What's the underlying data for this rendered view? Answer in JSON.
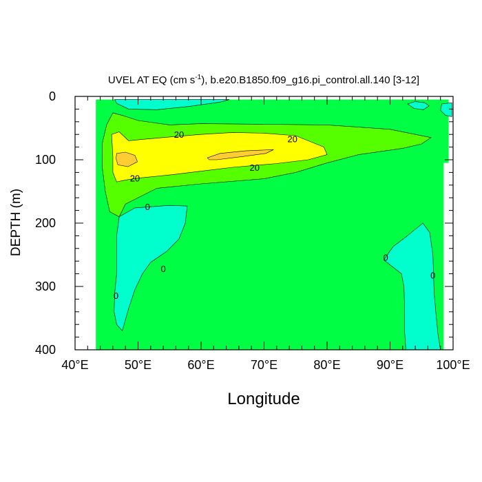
{
  "chart_data": {
    "type": "contour",
    "title": {
      "main": "UVEL AT EQ (cm s",
      "exp": "-1",
      "rest": "), b.e20.B1850.f09_g16.pi_control.all.140 [3-12]"
    },
    "xlabel": "Longitude",
    "ylabel": "DEPTH (m)",
    "xlim": [
      40,
      100
    ],
    "ylim": [
      0,
      400
    ],
    "y_inverted": true,
    "x_ticks": [
      40,
      50,
      60,
      70,
      80,
      90,
      100
    ],
    "x_tick_labels": [
      "40°E",
      "50°E",
      "60°E",
      "70°E",
      "80°E",
      "90°E",
      "100°E"
    ],
    "y_ticks": [
      0,
      100,
      200,
      300,
      400
    ],
    "y_tick_labels": [
      "0",
      "100",
      "200",
      "300",
      "400"
    ],
    "data_extent": {
      "x": [
        43.3,
        99.3
      ],
      "y": [
        5,
        400
      ]
    },
    "colors": {
      "negative": "#00ffcc",
      "background": "#00ff44",
      "band_10_20": "#55ff00",
      "band_20_30": "#ffff00",
      "band_30_40": "#ffcc33"
    },
    "regions": [
      {
        "fill": "negative",
        "level": "<0",
        "points": [
          [
            46.3,
            5
          ],
          [
            57,
            5
          ],
          [
            64.5,
            5
          ],
          [
            63,
            9
          ],
          [
            58,
            16
          ],
          [
            53,
            21
          ],
          [
            48.5,
            20
          ],
          [
            46.6,
            11
          ]
        ]
      },
      {
        "fill": "negative",
        "level": "<0",
        "points": [
          [
            92.8,
            12
          ],
          [
            94,
            8
          ],
          [
            95.5,
            10
          ],
          [
            96.2,
            15
          ],
          [
            95.3,
            21
          ],
          [
            93.8,
            19
          ]
        ]
      },
      {
        "fill": "negative",
        "level": "<0",
        "points": [
          [
            98.2,
            12
          ],
          [
            99.8,
            10
          ],
          [
            99.8,
            32
          ],
          [
            98.8,
            30
          ],
          [
            98,
            22
          ]
        ]
      },
      {
        "fill": "negative",
        "level": "<0",
        "points": [
          [
            47,
            190
          ],
          [
            49.5,
            176
          ],
          [
            55,
            172
          ],
          [
            57.8,
            173
          ],
          [
            57.5,
            200
          ],
          [
            56.5,
            225
          ],
          [
            54.5,
            245
          ],
          [
            52,
            262
          ],
          [
            50.7,
            280
          ],
          [
            49.5,
            305
          ],
          [
            48.5,
            335
          ],
          [
            47.5,
            370
          ],
          [
            46.6,
            360
          ],
          [
            46.2,
            340
          ],
          [
            46.3,
            310
          ],
          [
            46.6,
            280
          ],
          [
            46.6,
            250
          ],
          [
            46.6,
            220
          ]
        ]
      },
      {
        "fill": "negative",
        "level": "<0",
        "points": [
          [
            89,
            258
          ],
          [
            90.5,
            237
          ],
          [
            92.5,
            222
          ],
          [
            95.2,
            200
          ],
          [
            96.3,
            215
          ],
          [
            96.8,
            250
          ],
          [
            96.9,
            280
          ],
          [
            97,
            310
          ],
          [
            97.3,
            345
          ],
          [
            97.6,
            375
          ],
          [
            98,
            400
          ],
          [
            92.5,
            400
          ],
          [
            92.3,
            370
          ],
          [
            92.3,
            330
          ],
          [
            92.2,
            300
          ],
          [
            91.8,
            280
          ]
        ]
      },
      {
        "fill": "band_10_20",
        "level": "10-20",
        "points": [
          [
            44.3,
            110
          ],
          [
            44.3,
            75
          ],
          [
            45,
            45
          ],
          [
            46,
            26
          ],
          [
            47.5,
            30
          ],
          [
            50,
            38
          ],
          [
            55,
            45
          ],
          [
            60,
            43
          ],
          [
            70,
            44
          ],
          [
            80,
            45
          ],
          [
            90,
            52
          ],
          [
            96.5,
            65
          ],
          [
            95,
            75
          ],
          [
            92,
            82
          ],
          [
            85,
            92
          ],
          [
            80,
            105
          ],
          [
            75,
            120
          ],
          [
            70,
            130
          ],
          [
            60,
            138
          ],
          [
            53,
            145
          ],
          [
            48,
            170
          ],
          [
            47,
            190
          ],
          [
            45.5,
            182
          ],
          [
            44.8,
            150
          ]
        ]
      },
      {
        "fill": "band_20_30",
        "level": "20-30",
        "points": [
          [
            46,
            95
          ],
          [
            45.8,
            60
          ],
          [
            47,
            56
          ],
          [
            48.5,
            70
          ],
          [
            50.5,
            68
          ],
          [
            55,
            64
          ],
          [
            60,
            60
          ],
          [
            65,
            57
          ],
          [
            70,
            58
          ],
          [
            75,
            62
          ],
          [
            79.5,
            80
          ],
          [
            80,
            92
          ],
          [
            77,
            100
          ],
          [
            72,
            106
          ],
          [
            65,
            112
          ],
          [
            60,
            118
          ],
          [
            55,
            124
          ],
          [
            50,
            129
          ],
          [
            48,
            132
          ],
          [
            46.6,
            135
          ],
          [
            46,
            120
          ]
        ]
      },
      {
        "fill": "band_30_40",
        "level": "30-40",
        "points": [
          [
            46.6,
            90
          ],
          [
            48,
            88
          ],
          [
            49.5,
            93
          ],
          [
            49.9,
            103
          ],
          [
            48.4,
            111
          ],
          [
            46.8,
            108
          ],
          [
            46.5,
            98
          ]
        ]
      },
      {
        "fill": "band_30_40",
        "level": "30-40",
        "points": [
          [
            61,
            97
          ],
          [
            63,
            90
          ],
          [
            67,
            86
          ],
          [
            71.5,
            84
          ],
          [
            70.3,
            90
          ],
          [
            66.5,
            95
          ],
          [
            62.5,
            100
          ],
          [
            61.3,
            100
          ]
        ]
      }
    ],
    "zero_marks": [
      {
        "x": 51.5,
        "y": 175,
        "label": "0"
      },
      {
        "x": 54,
        "y": 273,
        "label": "0"
      },
      {
        "x": 46.5,
        "y": 315,
        "label": "0"
      },
      {
        "x": 89.3,
        "y": 255,
        "label": "0"
      },
      {
        "x": 96.8,
        "y": 283,
        "label": "0"
      }
    ],
    "contour_labels": [
      {
        "x": 56.5,
        "y": 60,
        "text": "20"
      },
      {
        "x": 74.5,
        "y": 67,
        "text": "20"
      },
      {
        "x": 68.5,
        "y": 112,
        "text": "20"
      },
      {
        "x": 49.5,
        "y": 129,
        "text": "20"
      }
    ]
  }
}
